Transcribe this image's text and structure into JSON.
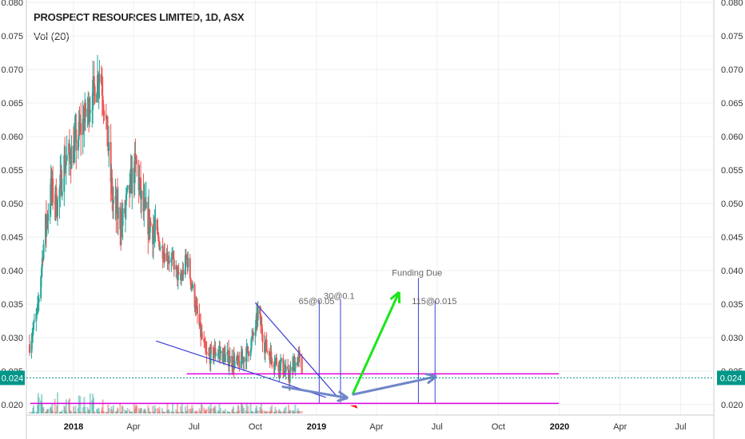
{
  "header": {
    "title": "PROSPECT RESOURCES LIMITED, 1D, ASX",
    "indicator": "Vol (20)"
  },
  "colors": {
    "up_candle": "#26a69a",
    "down_candle": "#ef5350",
    "grid": "#edf0f2",
    "price_line": "#009688",
    "magenta": "#e000e0",
    "trend_blue": "#3d3dd8",
    "arrow_green": "#19e619",
    "arrow_slate": "#6f86c9",
    "marker_red": "#ff0000"
  },
  "last_price_label": "0.024",
  "chart_data": {
    "type": "candlestick",
    "y_ticks": [
      "0.080",
      "0.075",
      "0.070",
      "0.065",
      "0.060",
      "0.055",
      "0.050",
      "0.045",
      "0.040",
      "0.035",
      "0.030",
      "0.025",
      "0.020"
    ],
    "ylim": [
      0.0195,
      0.0805
    ],
    "x_ticks": [
      {
        "label": "2018",
        "date": "2018-01-01",
        "bold": true
      },
      {
        "label": "Apr",
        "date": "2018-04-01"
      },
      {
        "label": "Jul",
        "date": "2018-07-01"
      },
      {
        "label": "Oct",
        "date": "2018-10-01"
      },
      {
        "label": "2019",
        "date": "2019-01-01",
        "bold": true
      },
      {
        "label": "Apr",
        "date": "2019-04-01"
      },
      {
        "label": "Jul",
        "date": "2019-07-01"
      },
      {
        "label": "Oct",
        "date": "2019-10-01"
      },
      {
        "label": "2020",
        "date": "2020-01-01",
        "bold": true
      },
      {
        "label": "Apr",
        "date": "2020-04-01"
      },
      {
        "label": "Jul",
        "date": "2020-07-01"
      }
    ],
    "xlim": [
      "2017-10-25",
      "2020-08-28"
    ],
    "current_price": 0.024,
    "close_path": [
      [
        "2017-10-27",
        0.029
      ],
      [
        "2017-11-08",
        0.034
      ],
      [
        "2017-11-18",
        0.045
      ],
      [
        "2017-11-28",
        0.052
      ],
      [
        "2017-12-08",
        0.05
      ],
      [
        "2017-12-18",
        0.056
      ],
      [
        "2018-01-01",
        0.058
      ],
      [
        "2018-01-15",
        0.062
      ],
      [
        "2018-02-01",
        0.067
      ],
      [
        "2018-02-10",
        0.07
      ],
      [
        "2018-02-18",
        0.063
      ],
      [
        "2018-03-01",
        0.05
      ],
      [
        "2018-03-15",
        0.047
      ],
      [
        "2018-03-28",
        0.053
      ],
      [
        "2018-04-05",
        0.056
      ],
      [
        "2018-04-15",
        0.049
      ],
      [
        "2018-05-01",
        0.046
      ],
      [
        "2018-05-15",
        0.043
      ],
      [
        "2018-06-01",
        0.041
      ],
      [
        "2018-06-10",
        0.038
      ],
      [
        "2018-06-20",
        0.042
      ],
      [
        "2018-07-01",
        0.036
      ],
      [
        "2018-07-10",
        0.031
      ],
      [
        "2018-07-20",
        0.027
      ],
      [
        "2018-08-05",
        0.028
      ],
      [
        "2018-08-20",
        0.027
      ],
      [
        "2018-09-05",
        0.026
      ],
      [
        "2018-09-20",
        0.028
      ],
      [
        "2018-10-01",
        0.031
      ],
      [
        "2018-10-05",
        0.034
      ],
      [
        "2018-10-15",
        0.029
      ],
      [
        "2018-10-25",
        0.027
      ],
      [
        "2018-11-08",
        0.026
      ],
      [
        "2018-11-20",
        0.024
      ],
      [
        "2018-11-28",
        0.026
      ],
      [
        "2018-12-05",
        0.027
      ],
      [
        "2018-12-10",
        0.025
      ]
    ],
    "annotations": [
      {
        "text": "65@0.05",
        "date": "2019-01-01",
        "price": 0.035
      },
      {
        "text": "30@0.1",
        "date": "2019-02-04",
        "price": 0.0358
      },
      {
        "text": "Funding Due",
        "date": "2019-06-01",
        "price": 0.0392
      },
      {
        "text": "115@0.015",
        "date": "2019-06-27",
        "price": 0.035
      }
    ]
  }
}
